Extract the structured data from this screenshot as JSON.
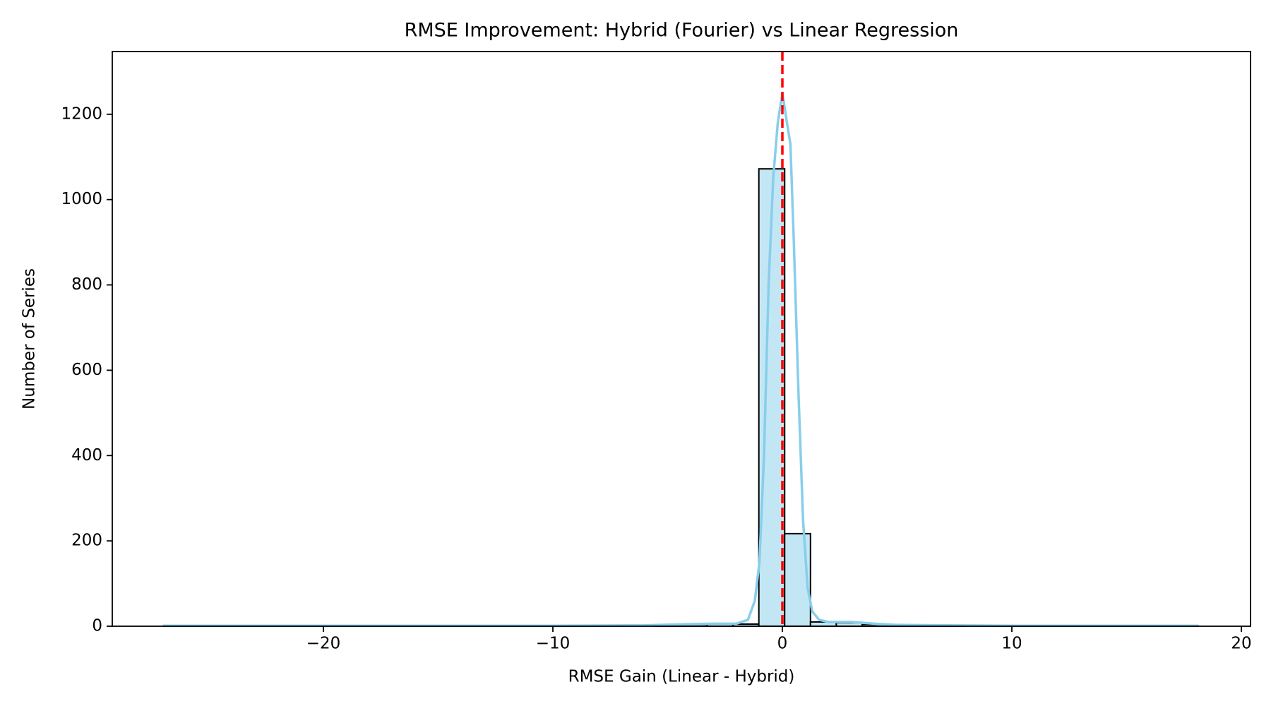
{
  "chart_data": {
    "type": "histogram",
    "title": "RMSE Improvement: Hybrid (Fourier) vs Linear Regression",
    "xlabel": "RMSE Gain (Linear - Hybrid)",
    "ylabel": "Number of Series",
    "bins": [
      -26.9,
      -25.775,
      -24.65,
      -23.525,
      -22.4,
      -21.275,
      -20.15,
      -19.025,
      -17.9,
      -16.775,
      -15.65,
      -14.525,
      -13.4,
      -12.275,
      -11.15,
      -10.025,
      -8.9,
      -7.775,
      -6.65,
      -5.525,
      -4.4,
      -3.275,
      -2.15,
      -1.025,
      0.1,
      1.225,
      2.35,
      3.475,
      4.6,
      5.725,
      6.85,
      7.975,
      9.1,
      10.225,
      11.35,
      12.475,
      13.6,
      14.725,
      15.85,
      16.975,
      18.1
    ],
    "counts": [
      1,
      0,
      0,
      0,
      0,
      0,
      1,
      0,
      0,
      0,
      0,
      0,
      0,
      0,
      1,
      0,
      0,
      0,
      0,
      1,
      4,
      5,
      5,
      1072,
      217,
      10,
      8,
      4,
      2,
      1,
      1,
      0,
      0,
      1,
      0,
      0,
      0,
      0,
      0,
      1
    ],
    "color": "#c3e6f4",
    "edgecolor": "#000000",
    "kde": {
      "color": "#87ceeb",
      "x": [
        -27,
        -20,
        -15,
        -10,
        -6,
        -4,
        -3,
        -2,
        -1.5,
        -1.2,
        -1,
        -0.8,
        -0.6,
        -0.4,
        -0.2,
        0,
        0.2,
        0.35,
        0.5,
        0.7,
        0.9,
        1.1,
        1.3,
        1.6,
        2,
        3,
        4,
        5,
        7,
        10,
        12,
        15,
        18.1
      ],
      "values": [
        1,
        1,
        1,
        1,
        2,
        5,
        6,
        6,
        15,
        60,
        150,
        400,
        800,
        1050,
        1180,
        1250,
        1180,
        1130,
        900,
        550,
        250,
        90,
        35,
        15,
        10,
        10,
        6,
        3,
        2,
        1,
        1,
        1,
        1
      ]
    },
    "reference_line": {
      "value": 0,
      "color": "#ff0000"
    },
    "xlim": [
      -29.2,
      20.4
    ],
    "ylim": [
      0,
      1347
    ],
    "xticks": [
      {
        "value": -20,
        "label": "−20"
      },
      {
        "value": -10,
        "label": "−10"
      },
      0,
      10,
      20
    ],
    "yticks": [
      0,
      200,
      400,
      600,
      800,
      1000,
      1200
    ],
    "grid": false
  }
}
